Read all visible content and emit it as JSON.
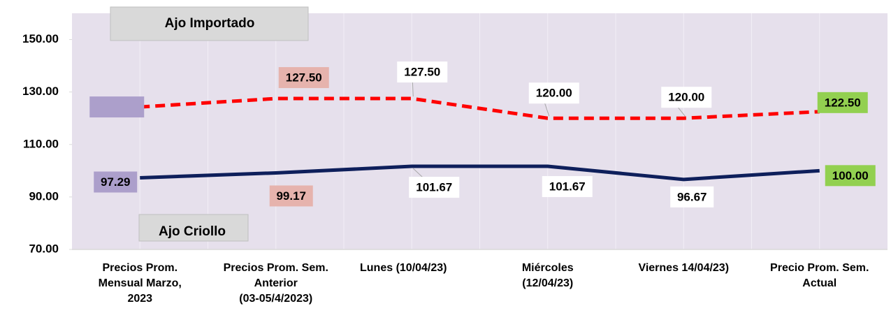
{
  "chart_data": {
    "type": "line",
    "categories": [
      "Precios Prom.\nMensual Marzo,\n2023",
      "Precios Prom. Sem.\nAnterior\n(03-05/4/2023)",
      "Lunes  (10/04/23)",
      "Miércoles\n(12/04/23)",
      "Viernes  14/04/23)",
      "Precio Prom. Sem.\nActual"
    ],
    "series": [
      {
        "name": "Ajo Importado",
        "color": "#ff0000",
        "dashed": true,
        "values": [
          124.3,
          127.5,
          127.5,
          120,
          120,
          122.5
        ],
        "value_labels": [
          null,
          "127.50",
          "127.50",
          "120.00",
          "120.00",
          "122.50"
        ],
        "label_colors": [
          "#ac9fcb",
          "#e6b3ad",
          "#ffffff",
          "#ffffff",
          "#ffffff",
          "#92d050"
        ]
      },
      {
        "name": "Ajo Criollo",
        "color": "#0e1f5b",
        "dashed": false,
        "values": [
          97.29,
          99.17,
          101.67,
          101.67,
          96.67,
          100
        ],
        "value_labels": [
          "97.29",
          "99.17",
          "101.67",
          "101.67",
          "96.67",
          "100.00"
        ],
        "label_colors": [
          "#ac9fcb",
          "#e6b3ad",
          "#ffffff",
          "#ffffff",
          "#ffffff",
          "#92d050"
        ]
      }
    ],
    "ylim": [
      70,
      160
    ],
    "yticks": [
      {
        "value": 70,
        "label": "70.00"
      },
      {
        "value": 90,
        "label": "90.00"
      },
      {
        "value": 110,
        "label": "110.00"
      },
      {
        "value": 130,
        "label": "130.00"
      },
      {
        "value": 150,
        "label": "150.00"
      }
    ]
  }
}
